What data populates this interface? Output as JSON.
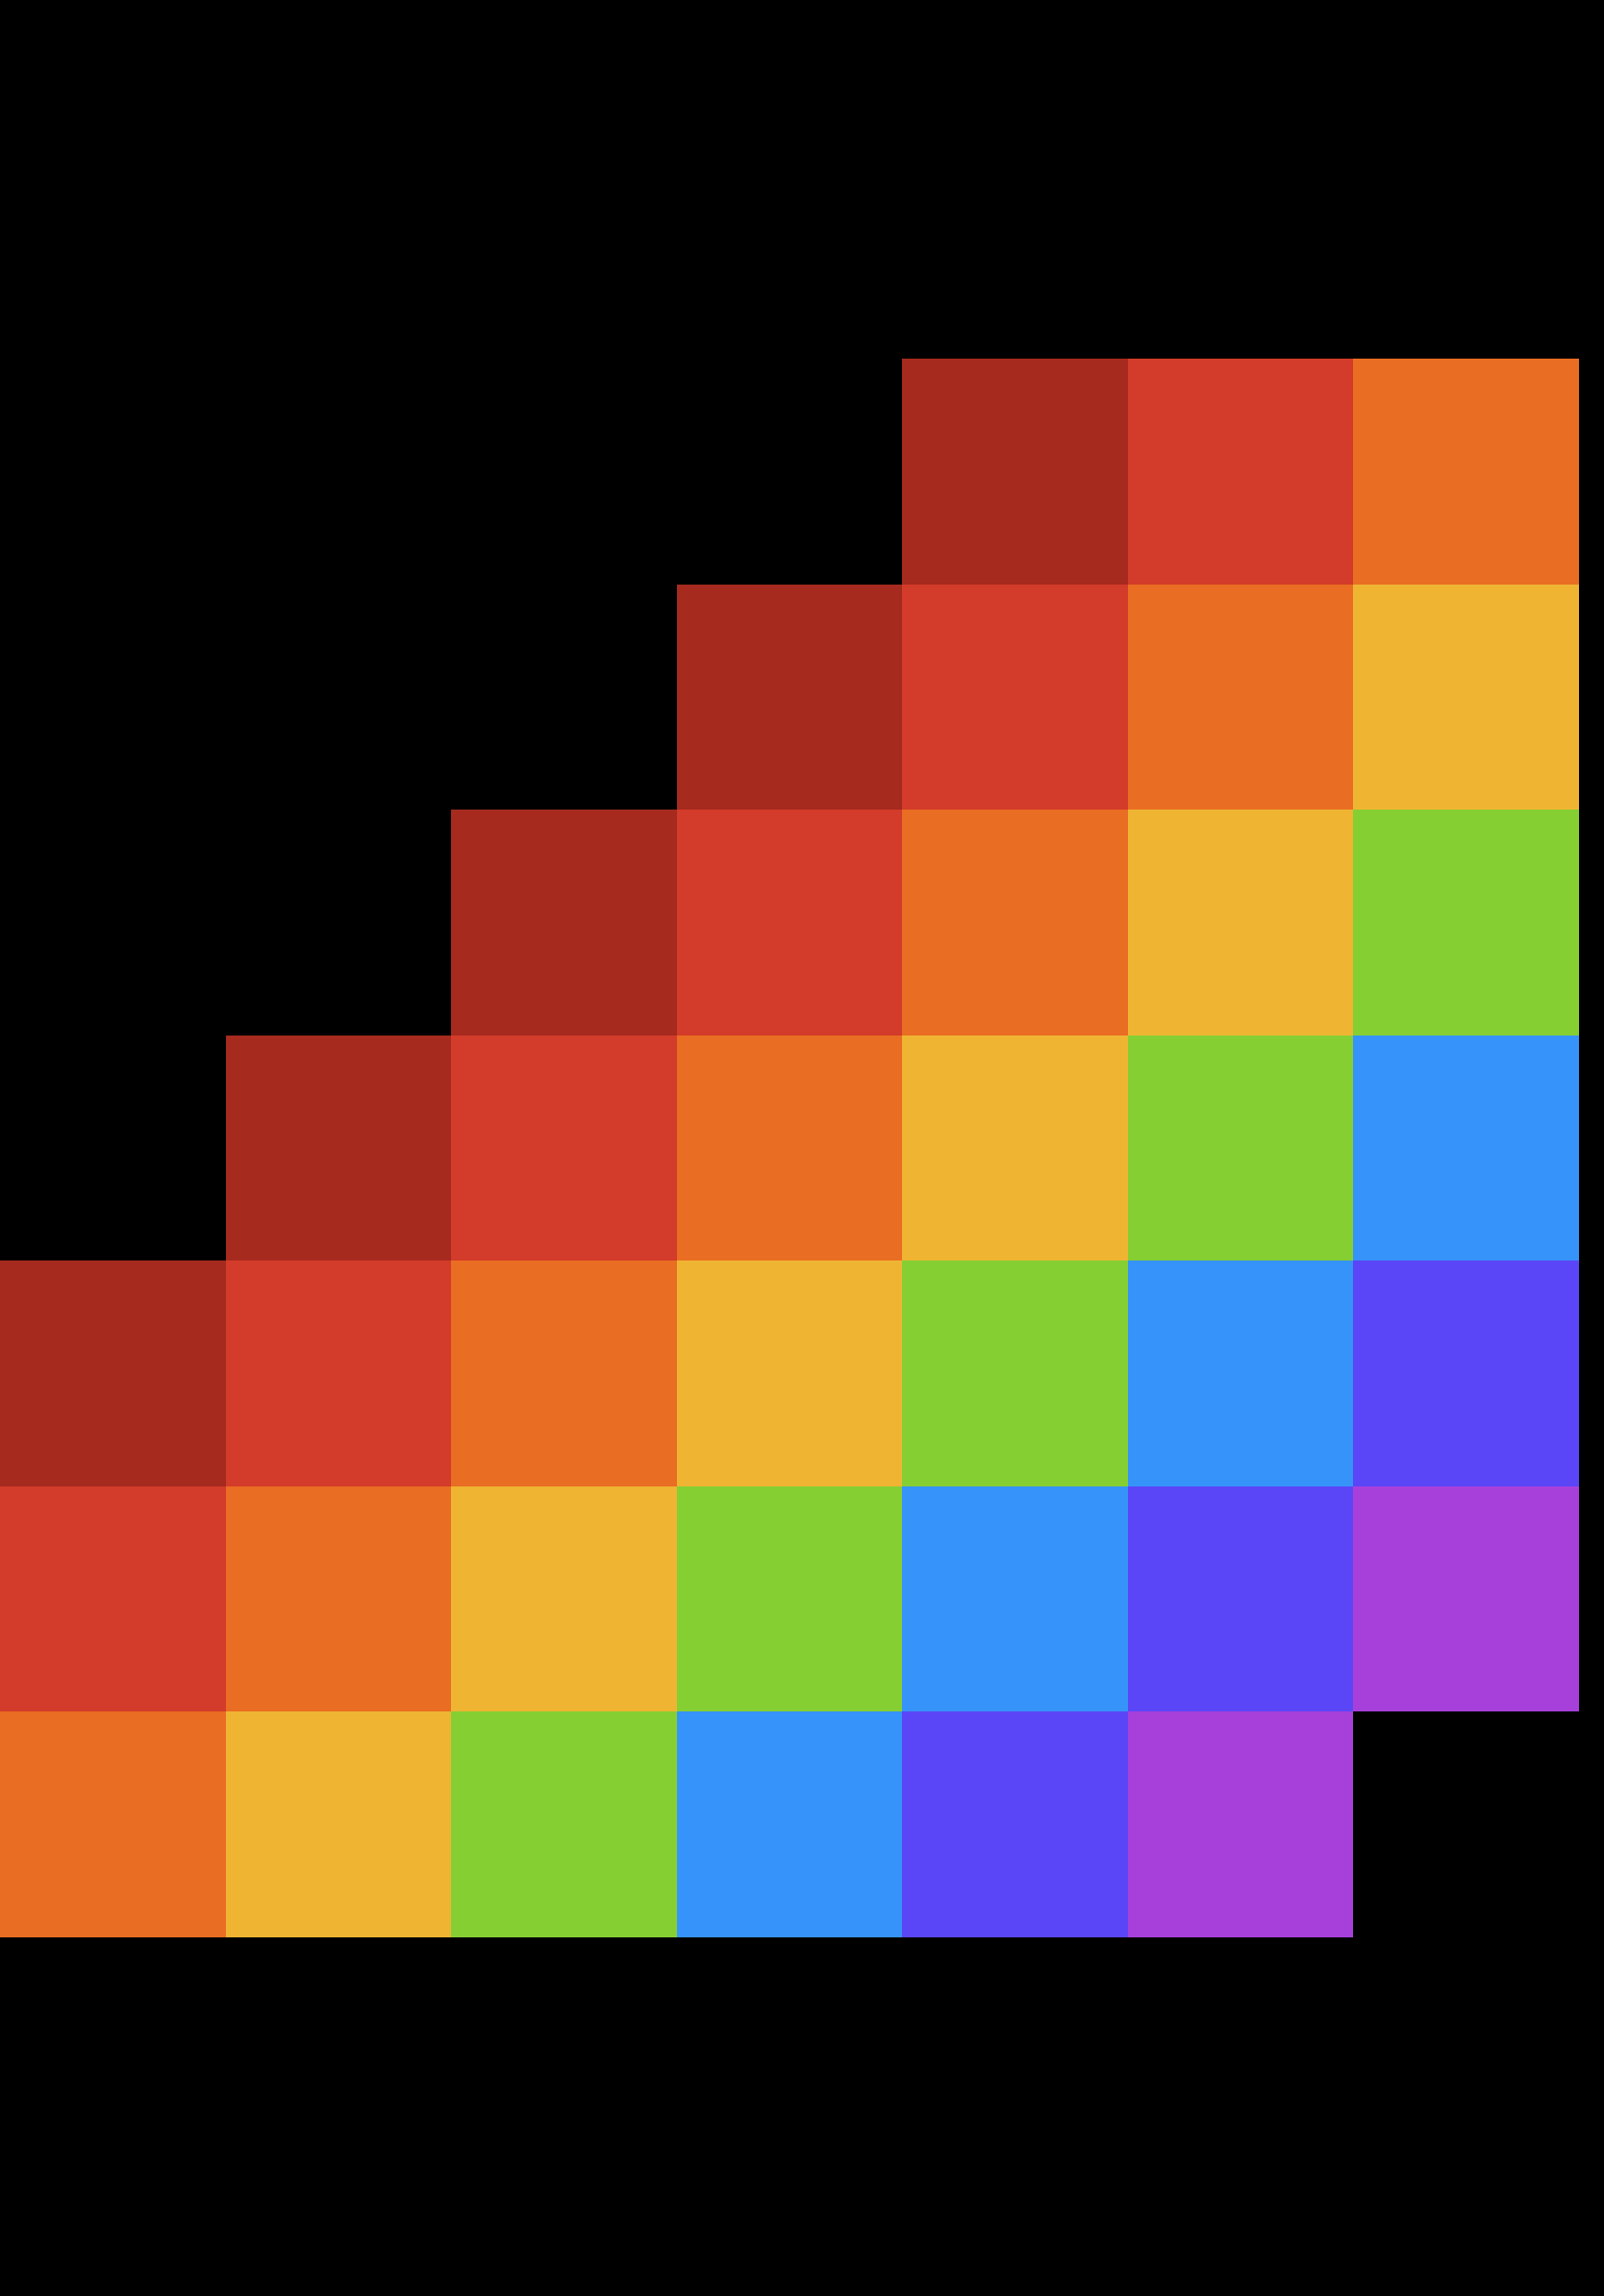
{
  "background": "#000000",
  "palette": {
    "dark-red": "#A62A1E",
    "red": "#D33B2A",
    "orange": "#E96D22",
    "yellow": "#EFB532",
    "green": "#86CF33",
    "blue": "#3693FA",
    "indigo": "#5B46F7",
    "purple": "#A740DB"
  },
  "grid": [
    [
      null,
      null,
      null,
      null,
      "dark-red",
      "red",
      "orange"
    ],
    [
      null,
      null,
      null,
      "dark-red",
      "red",
      "orange",
      "yellow"
    ],
    [
      null,
      null,
      "dark-red",
      "red",
      "orange",
      "yellow",
      "green"
    ],
    [
      null,
      "dark-red",
      "red",
      "orange",
      "yellow",
      "green",
      "blue"
    ],
    [
      "dark-red",
      "red",
      "orange",
      "yellow",
      "green",
      "blue",
      "indigo"
    ],
    [
      "red",
      "orange",
      "yellow",
      "green",
      "blue",
      "indigo",
      "purple"
    ],
    [
      "orange",
      "yellow",
      "green",
      "blue",
      "indigo",
      "purple",
      null
    ]
  ]
}
